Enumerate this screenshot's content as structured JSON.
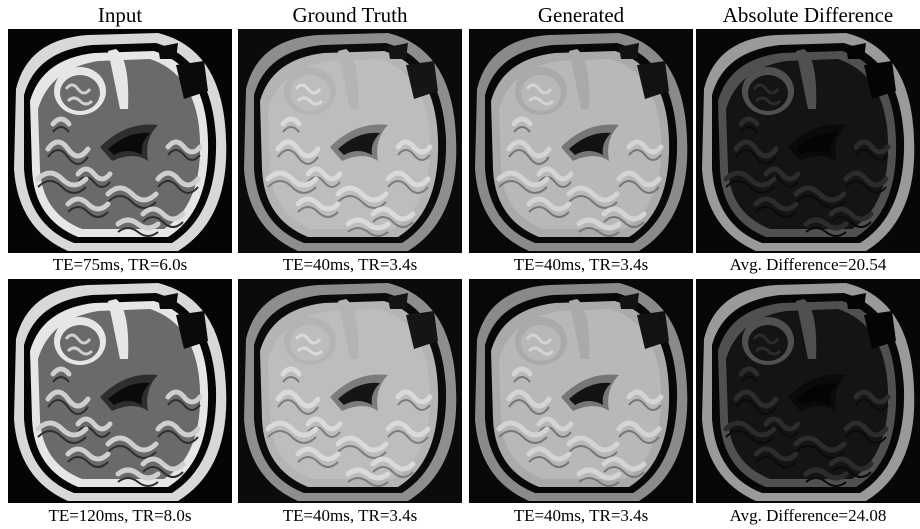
{
  "column_titles": [
    "Input",
    "Ground Truth",
    "Generated",
    "Absolute Difference"
  ],
  "rows": [
    {
      "captions": [
        "TE=75ms, TR=6.0s",
        "TE=40ms, TR=3.4s",
        "TE=40ms, TR=3.4s",
        "Avg. Difference=20.54"
      ]
    },
    {
      "captions": [
        "TE=120ms, TR=8.0s",
        "TE=40ms, TR=3.4s",
        "TE=40ms, TR=3.4s",
        "Avg. Difference=24.08"
      ]
    }
  ],
  "panel_styles": {
    "input": {
      "bg": "#050505",
      "skull": "#d8d8d8",
      "csf": "#e6e6e6",
      "brain": "#6a6a6a",
      "gyri": "#cfcfcf",
      "sulci": "#2e2e2e",
      "dark": "#0a0a0a"
    },
    "truth": {
      "bg": "#0b0b0b",
      "skull": "#8e8e8e",
      "csf": "#b4b4b4",
      "brain": "#bdbdbd",
      "gyri": "#dadada",
      "sulci": "#7c7c7c",
      "dark": "#151515"
    },
    "gen": {
      "bg": "#080808",
      "skull": "#8a8a8a",
      "csf": "#aaaaaa",
      "brain": "#b8b8b8",
      "gyri": "#d4d4d4",
      "sulci": "#767676",
      "dark": "#121212"
    },
    "diff": {
      "bg": "#070707",
      "skull": "#9a9a9a",
      "csf": "#505050",
      "brain": "#141414",
      "gyri": "#2c2c2c",
      "sulci": "#0a0a0a",
      "dark": "#040404"
    }
  }
}
